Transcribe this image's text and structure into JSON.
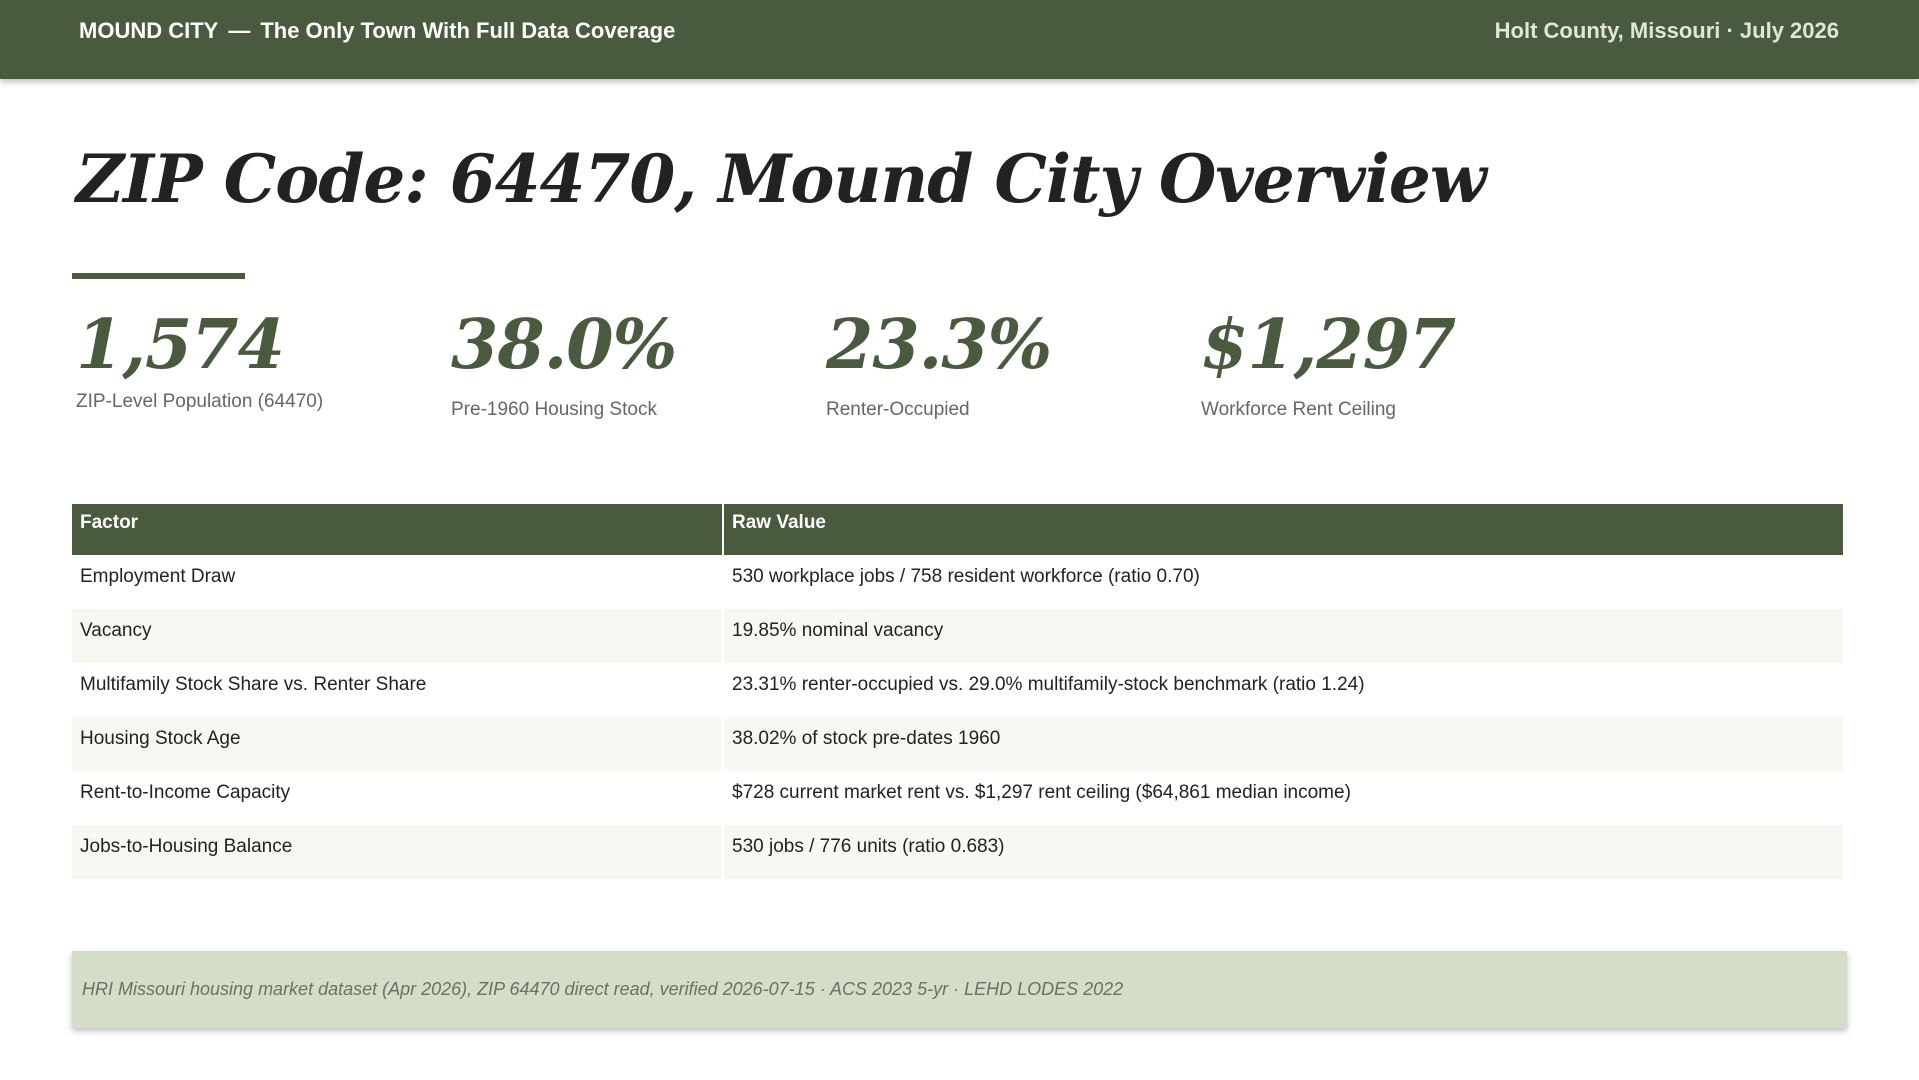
{
  "header": {
    "town": "MOUND CITY",
    "separator": "—",
    "tagline": "The Only Town With Full Data Coverage",
    "location_date": "Holt County, Missouri · July 2026"
  },
  "title": "ZIP Code: 64470, Mound City Overview",
  "stats": [
    {
      "value": "1,574",
      "label": "ZIP-Level Population (64470)"
    },
    {
      "value": "38.0%",
      "label": "Pre-1960 Housing Stock"
    },
    {
      "value": "23.3%",
      "label": "Renter-Occupied"
    },
    {
      "value": "$1,297",
      "label": "Workforce Rent Ceiling"
    }
  ],
  "table": {
    "headers": [
      "Factor",
      "Raw Value"
    ],
    "rows": [
      {
        "factor": "Employment Draw",
        "value": "530 workplace jobs / 758 resident workforce (ratio 0.70)"
      },
      {
        "factor": "Vacancy",
        "value": "19.85% nominal vacancy"
      },
      {
        "factor": "Multifamily Stock Share vs. Renter Share",
        "value": "23.31% renter-occupied vs. 29.0% multifamily-stock benchmark (ratio 1.24)"
      },
      {
        "factor": "Housing Stock Age",
        "value": "38.02% of stock pre-dates 1960"
      },
      {
        "factor": "Rent-to-Income Capacity",
        "value": "$728 current market rent vs. $1,297 rent ceiling ($64,861 median income)"
      },
      {
        "factor": "Jobs-to-Housing Balance",
        "value": "530 jobs / 776 units (ratio 0.683)"
      }
    ]
  },
  "source": "HRI Missouri housing market dataset (Apr 2026), ZIP 64470 direct read, verified 2026-07-15 · ACS 2023 5-yr · LEHD LODES 2022",
  "colors": {
    "primary_green": "#4a5a3f",
    "source_bg": "#d4ddc8",
    "row_alt": "#f8f7f2"
  }
}
